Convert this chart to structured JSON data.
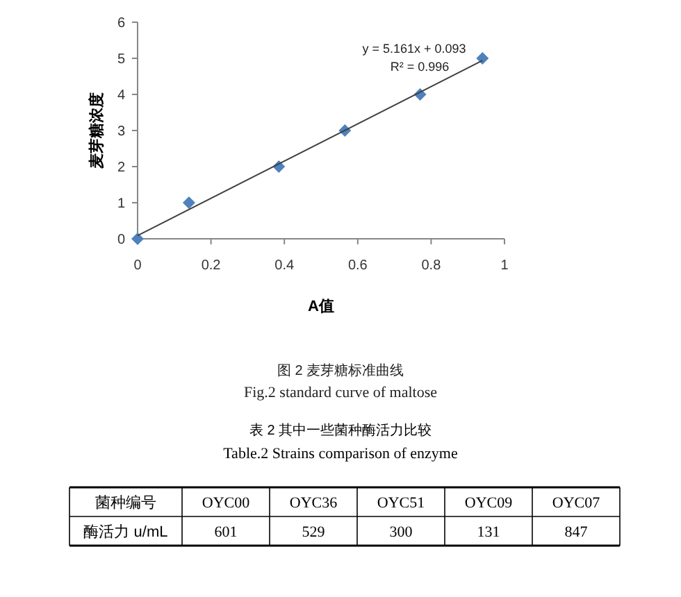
{
  "chart_data": [
    {
      "type": "scatter",
      "xlabel": "A值",
      "ylabel": "麦芽糖浓度",
      "xlim": [
        0,
        1
      ],
      "ylim": [
        0,
        6
      ],
      "xticks": [
        0,
        0.2,
        0.4,
        0.6,
        0.8,
        1
      ],
      "yticks": [
        0,
        1,
        2,
        3,
        4,
        5,
        6
      ],
      "grid": false,
      "series": [
        {
          "type": "scatter",
          "marker": "diamond",
          "color": "#4f81bd",
          "x": [
            0,
            0.14,
            0.385,
            0.565,
            0.77,
            0.94
          ],
          "values": [
            0,
            1,
            2,
            3,
            4,
            5
          ]
        },
        {
          "type": "line",
          "marker": "none",
          "color": "#404040",
          "x": [
            0,
            0.94
          ],
          "values": [
            0.09,
            4.94
          ]
        }
      ],
      "annotations": [
        "y = 5.161x + 0.093",
        "R² = 0.996",
        "图 2   麦芽糖标准曲线",
        "Fig.2    standard curve of maltose"
      ]
    },
    {
      "type": "other",
      "title": "表 2 其中一些菌种酶活力比较",
      "subtitle": "Table.2 Strains comparison of enzyme",
      "xlabel": "菌种编号",
      "ylabel": "酶活力 u/mL",
      "categories": [
        "OYC00",
        "OYC36",
        "OYC51",
        "OYC09",
        "OYC07"
      ],
      "values": [
        601,
        529,
        300,
        131,
        847
      ],
      "data_labels": true
    }
  ]
}
